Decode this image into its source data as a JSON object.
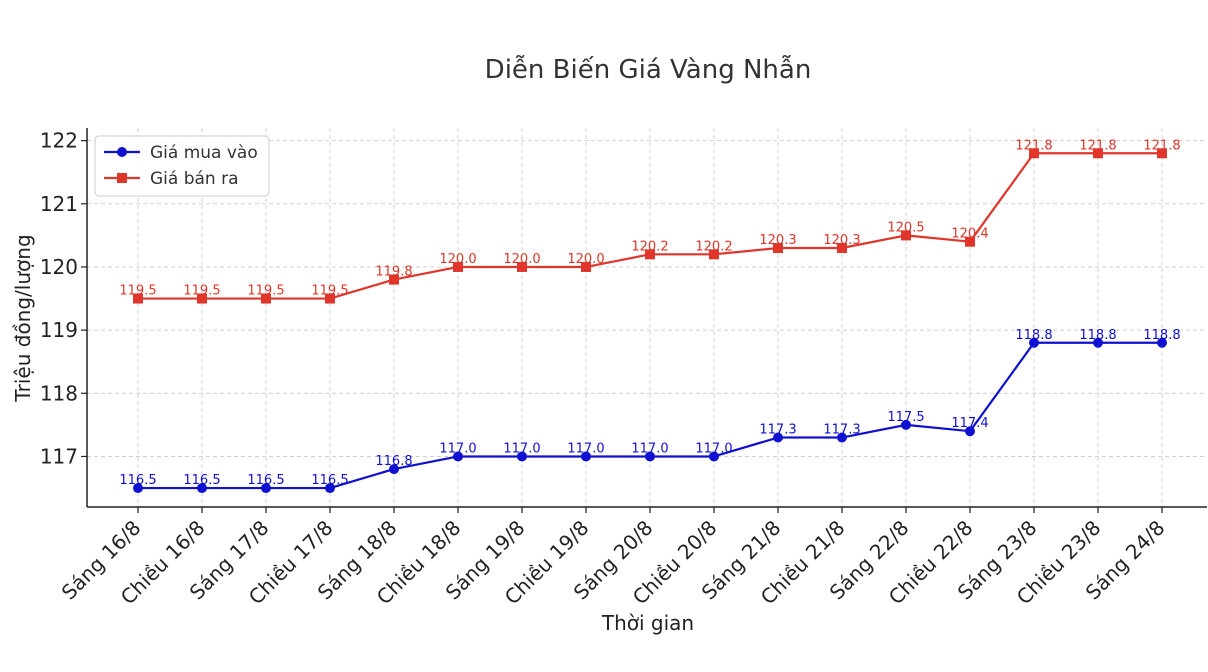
{
  "chart_data": {
    "type": "line",
    "title": "Diễn Biến Giá Vàng Nhẫn",
    "xlabel": "Thời gian",
    "ylabel": "Triệu đồng/lượng",
    "ylim": [
      116.2,
      122.2
    ],
    "yticks": [
      117,
      118,
      119,
      120,
      121,
      122
    ],
    "grid": true,
    "legend_position": "top-left",
    "categories": [
      "Sáng 16/8",
      "Chiều 16/8",
      "Sáng 17/8",
      "Chiều 17/8",
      "Sáng 18/8",
      "Chiều 18/8",
      "Sáng 19/8",
      "Chiều 19/8",
      "Sáng 20/8",
      "Chiều 20/8",
      "Sáng 21/8",
      "Chiều 21/8",
      "Sáng 22/8",
      "Chiều 22/8",
      "Sáng 23/8",
      "Chiều 23/8",
      "Sáng 24/8"
    ],
    "series": [
      {
        "name": "Giá mua vào",
        "color": "#1010d0",
        "marker": "circle",
        "values": [
          116.5,
          116.5,
          116.5,
          116.5,
          116.8,
          117.0,
          117.0,
          117.0,
          117.0,
          117.0,
          117.3,
          117.3,
          117.5,
          117.4,
          118.8,
          118.8,
          118.8
        ],
        "labels": [
          "116.5",
          "116.5",
          "116.5",
          "116.5",
          "116.8",
          "117.0",
          "117.0",
          "117.0",
          "117.0",
          "117.0",
          "117.3",
          "117.3",
          "117.5",
          "117.4",
          "118.8",
          "118.8",
          "118.8"
        ]
      },
      {
        "name": "Giá bán ra",
        "color": "#e0352b",
        "marker": "square",
        "values": [
          119.5,
          119.5,
          119.5,
          119.5,
          119.8,
          120.0,
          120.0,
          120.0,
          120.2,
          120.2,
          120.3,
          120.3,
          120.5,
          120.4,
          121.8,
          121.8,
          121.8
        ],
        "labels": [
          "119.5",
          "119.5",
          "119.5",
          "119.5",
          "119.8",
          "120.0",
          "120.0",
          "120.0",
          "120.2",
          "120.2",
          "120.3",
          "120.3",
          "120.5",
          "120.4",
          "121.8",
          "121.8",
          "121.8"
        ]
      }
    ]
  }
}
